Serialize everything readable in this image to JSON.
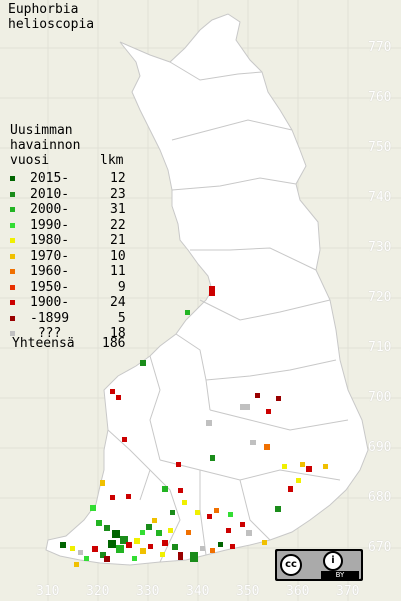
{
  "title": {
    "line1": "Euphorbia",
    "line2": "helioscopia"
  },
  "legend": {
    "header1": "Uusimman",
    "header2": "havainnon",
    "header3": "vuosi",
    "header_count": "lkm",
    "rows": [
      {
        "label": "2015-",
        "count": "12",
        "color": "#006400"
      },
      {
        "label": "2010-",
        "count": "23",
        "color": "#1a8c1a"
      },
      {
        "label": "2000-",
        "count": "31",
        "color": "#22b422"
      },
      {
        "label": "1990-",
        "count": "22",
        "color": "#33dd33"
      },
      {
        "label": "1980-",
        "count": "21",
        "color": "#f0f000"
      },
      {
        "label": "1970-",
        "count": "10",
        "color": "#f0c000"
      },
      {
        "label": "1960-",
        "count": "11",
        "color": "#f07000"
      },
      {
        "label": "1950-",
        "count": " 9",
        "color": "#e83000"
      },
      {
        "label": "1900-",
        "count": "24",
        "color": "#cc0000"
      },
      {
        "label": "-1899",
        "count": " 5",
        "color": "#990000"
      },
      {
        "label": " ???",
        "count": "18",
        "color": "#c0c0c0"
      }
    ],
    "total_label": "Yhteensä",
    "total_count": "186"
  },
  "axes": {
    "y_ticks": [
      "770",
      "760",
      "750",
      "740",
      "730",
      "720",
      "710",
      "700",
      "690",
      "680",
      "670"
    ],
    "x_ticks": [
      "310",
      "320",
      "330",
      "340",
      "350",
      "360",
      "370"
    ]
  },
  "license": {
    "cc": "cc",
    "by": "BY"
  }
}
